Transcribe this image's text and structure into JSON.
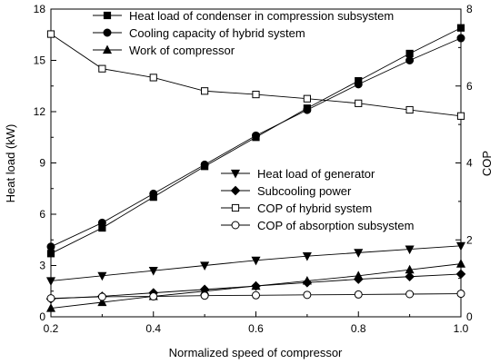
{
  "chart_data": {
    "type": "line",
    "xlabel": "Normalized speed of compressor",
    "ylabel_left": "Heat load (kW)",
    "ylabel_right": "COP",
    "xlim": [
      0.2,
      1.0
    ],
    "ylim_left": [
      0,
      18
    ],
    "ylim_right": [
      0,
      8
    ],
    "x_ticks": [
      0.2,
      0.4,
      0.6,
      0.8,
      1.0
    ],
    "x_tick_labels": [
      "0.2",
      "0.4",
      "0.6",
      "0.8",
      "1.0"
    ],
    "y_left_ticks": [
      0,
      3,
      6,
      9,
      12,
      15,
      18
    ],
    "y_left_tick_labels": [
      "0",
      "3",
      "6",
      "9",
      "12",
      "15",
      "18"
    ],
    "y_right_ticks": [
      0,
      2,
      4,
      6,
      8
    ],
    "y_right_tick_labels": [
      "0",
      "2",
      "4",
      "6",
      "8"
    ],
    "x": [
      0.2,
      0.3,
      0.4,
      0.5,
      0.6,
      0.7,
      0.8,
      0.9,
      1.0
    ],
    "series": [
      {
        "name": "Heat load of condenser in compression subsystem",
        "axis": "left",
        "marker": "square-filled",
        "values": [
          3.7,
          5.2,
          7.0,
          8.8,
          10.5,
          12.2,
          13.8,
          15.4,
          16.9
        ]
      },
      {
        "name": "Cooling capacity of hybrid system",
        "axis": "left",
        "marker": "circle-filled",
        "values": [
          4.1,
          5.5,
          7.2,
          8.9,
          10.6,
          12.1,
          13.6,
          15.0,
          16.3
        ]
      },
      {
        "name": "Work of compressor",
        "axis": "left",
        "marker": "triangle-up-filled",
        "values": [
          0.5,
          0.85,
          1.2,
          1.5,
          1.8,
          2.1,
          2.4,
          2.75,
          3.1
        ]
      },
      {
        "name": "Heat load of generator",
        "axis": "left",
        "marker": "triangle-down-filled",
        "values": [
          2.1,
          2.4,
          2.7,
          3.0,
          3.3,
          3.55,
          3.75,
          3.95,
          4.15
        ]
      },
      {
        "name": "Subcooling power",
        "axis": "left",
        "marker": "diamond-filled",
        "values": [
          1.05,
          1.2,
          1.4,
          1.6,
          1.8,
          2.0,
          2.2,
          2.35,
          2.5
        ]
      },
      {
        "name": "COP of hybrid system",
        "axis": "right",
        "marker": "square-open",
        "values": [
          7.35,
          6.45,
          6.22,
          5.87,
          5.78,
          5.67,
          5.55,
          5.38,
          5.22
        ]
      },
      {
        "name": "COP of absorption subsystem",
        "axis": "right",
        "marker": "circle-open",
        "values": [
          0.48,
          0.52,
          0.53,
          0.55,
          0.56,
          0.57,
          0.58,
          0.59,
          0.6
        ]
      }
    ],
    "legend_top": {
      "placement": "top-left",
      "entries": [
        "Heat load of condenser in compression subsystem",
        "Cooling capacity of hybrid system",
        "Work of compressor"
      ]
    },
    "legend_bottom": {
      "placement": "center-right",
      "entries": [
        "Heat load of generator",
        "Subcooling power",
        "COP of hybrid system",
        "COP of absorption subsystem"
      ]
    },
    "grid": false,
    "colors": {
      "line": "#000000",
      "open_fill": "#ffffff",
      "background": "#ffffff"
    }
  }
}
